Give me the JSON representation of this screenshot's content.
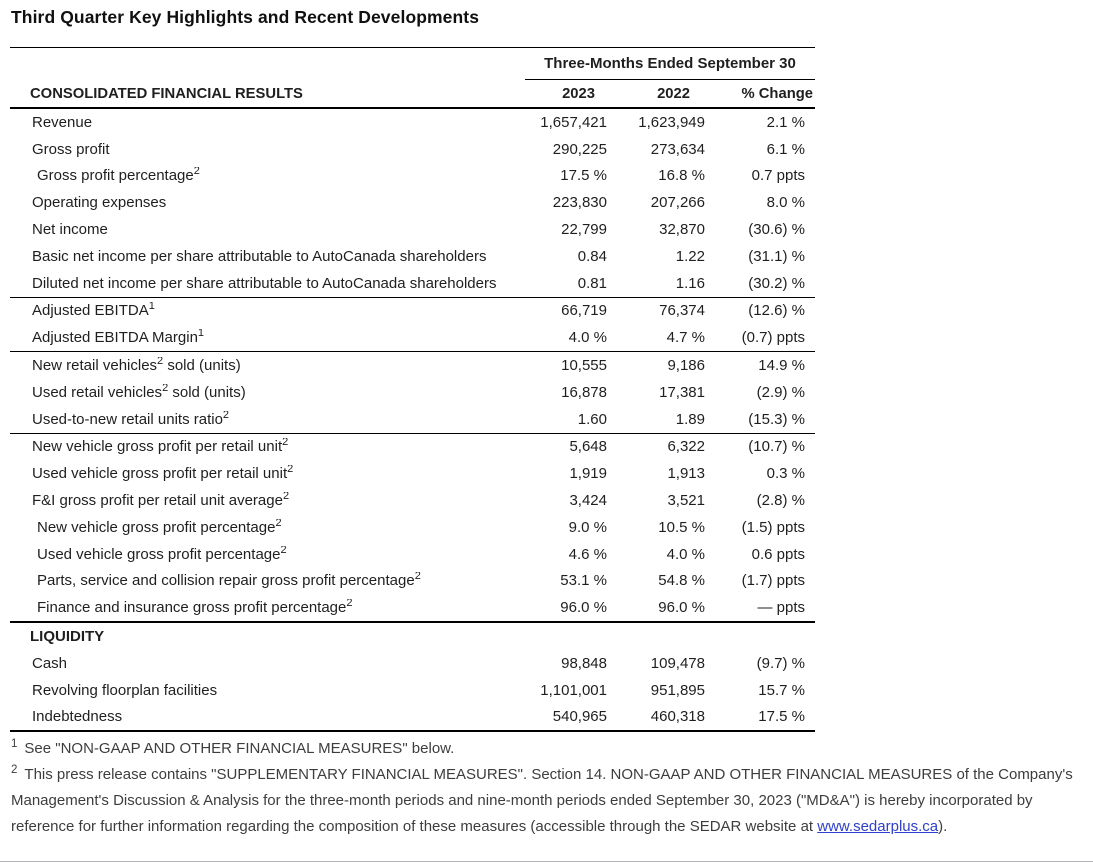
{
  "title": "Third Quarter Key Highlights and Recent Developments",
  "table": {
    "period_header": "Three-Months Ended September 30",
    "columns": {
      "label": "CONSOLIDATED FINANCIAL RESULTS",
      "y2023": "2023",
      "y2022": "2022",
      "change": "% Change"
    },
    "sections": [
      {
        "rows": [
          {
            "label": "Revenue",
            "v2023": "1,657,421",
            "v2022": "1,623,949",
            "change": "2.1 %"
          },
          {
            "label": "Gross profit",
            "v2023": "290,225",
            "v2022": "273,634",
            "change": "6.1 %"
          },
          {
            "label": "Gross profit percentage",
            "sup": "2",
            "indent": true,
            "v2023": "17.5 %",
            "v2022": "16.8 %",
            "change": "0.7 ppts"
          },
          {
            "label": "Operating expenses",
            "v2023": "223,830",
            "v2022": "207,266",
            "change": "8.0 %"
          },
          {
            "label": "Net income",
            "v2023": "22,799",
            "v2022": "32,870",
            "change": "(30.6) %"
          },
          {
            "label": "Basic net income per share attributable to AutoCanada shareholders",
            "v2023": "0.84",
            "v2022": "1.22",
            "change": "(31.1) %"
          },
          {
            "label": "Diluted net income per share attributable to AutoCanada shareholders",
            "v2023": "0.81",
            "v2022": "1.16",
            "change": "(30.2) %"
          }
        ]
      },
      {
        "rows": [
          {
            "label": "Adjusted EBITDA",
            "sup": "1",
            "v2023": "66,719",
            "v2022": "76,374",
            "change": "(12.6) %"
          },
          {
            "label": "Adjusted EBITDA Margin",
            "sup": "1",
            "v2023": "4.0 %",
            "v2022": "4.7 %",
            "change": "(0.7) ppts"
          }
        ]
      },
      {
        "rows": [
          {
            "label": "New retail vehicles",
            "sup": "2",
            "label_after": " sold (units)",
            "v2023": "10,555",
            "v2022": "9,186",
            "change": "14.9 %"
          },
          {
            "label": "Used retail vehicles",
            "sup": "2",
            "label_after": " sold (units)",
            "v2023": "16,878",
            "v2022": "17,381",
            "change": "(2.9) %"
          },
          {
            "label": "Used-to-new retail units ratio",
            "sup": "2",
            "v2023": "1.60",
            "v2022": "1.89",
            "change": "(15.3) %"
          }
        ]
      },
      {
        "strong": true,
        "rows": [
          {
            "label": "New vehicle gross profit per retail unit",
            "sup": "2",
            "v2023": "5,648",
            "v2022": "6,322",
            "change": "(10.7) %"
          },
          {
            "label": "Used vehicle gross profit per retail unit",
            "sup": "2",
            "v2023": "1,919",
            "v2022": "1,913",
            "change": "0.3 %"
          },
          {
            "label": "F&I gross profit per retail unit average",
            "sup": "2",
            "v2023": "3,424",
            "v2022": "3,521",
            "change": "(2.8) %"
          },
          {
            "label": "New vehicle gross profit percentage",
            "sup": "2",
            "indent": true,
            "v2023": "9.0 %",
            "v2022": "10.5 %",
            "change": "(1.5) ppts"
          },
          {
            "label": "Used vehicle gross profit percentage",
            "sup": "2",
            "indent": true,
            "v2023": "4.6 %",
            "v2022": "4.0 %",
            "change": "0.6 ppts"
          },
          {
            "label": "Parts, service and collision repair gross profit percentage",
            "sup": "2",
            "indent": true,
            "v2023": "53.1 %",
            "v2022": "54.8 %",
            "change": "(1.7) ppts"
          },
          {
            "label": "Finance and insurance gross profit percentage",
            "sup": "2",
            "indent": true,
            "v2023": "96.0 %",
            "v2022": "96.0 %",
            "change": "— ppts"
          }
        ]
      },
      {
        "strong": true,
        "header": "LIQUIDITY",
        "rows": [
          {
            "label": "Cash",
            "v2023": "98,848",
            "v2022": "109,478",
            "change": "(9.7) %"
          },
          {
            "label": "Revolving floorplan facilities",
            "v2023": "1,101,001",
            "v2022": "951,895",
            "change": "15.7 %"
          },
          {
            "label": "Indebtedness",
            "v2023": "540,965",
            "v2022": "460,318",
            "change": "17.5 %"
          }
        ]
      }
    ]
  },
  "footnotes": [
    {
      "marker": "1",
      "text": "See \"NON-GAAP AND OTHER FINANCIAL MEASURES\" below."
    },
    {
      "marker": "2",
      "text_before_link": "This press release contains \"SUPPLEMENTARY FINANCIAL MEASURES\". Section 14. NON-GAAP AND OTHER FINANCIAL MEASURES of the Company's Management's Discussion & Analysis for the three-month periods and nine-month periods ended September 30, 2023 (\"MD&A\") is hereby incorporated by reference for further information regarding the composition of these measures (accessible through the SEDAR website at ",
      "link_text": "www.sedarplus.ca",
      "text_after_link": ")."
    }
  ],
  "colors": {
    "link_blue": "#2f3fd0",
    "rule_black": "#000000",
    "table_text": "#1f1f1f",
    "footnote_text": "#3d3d3d"
  }
}
